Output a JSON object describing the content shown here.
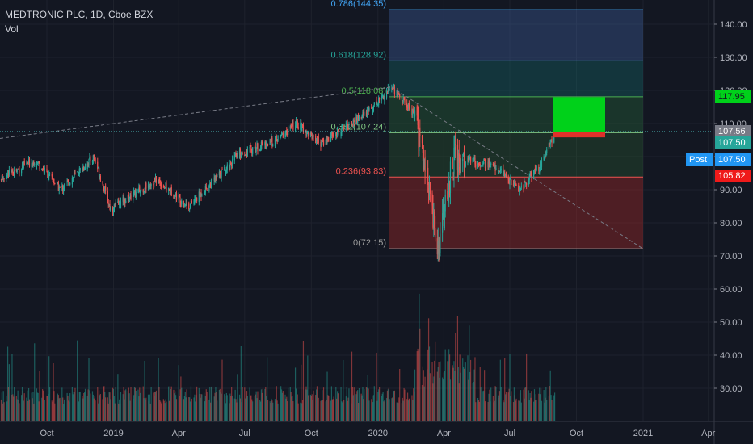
{
  "header": {
    "symbol_line": "MEDTRONIC PLC, 1D, Cboe BZX",
    "indicator": "Vol"
  },
  "colors": {
    "background": "#131722",
    "up": "#26a69a",
    "down": "#ef5350",
    "target_box": "#00d11a",
    "stop_box": "#e0302a"
  },
  "chart_data": {
    "type": "candlestick",
    "x_ticks": [
      "Oct",
      "2019",
      "Apr",
      "Jul",
      "Oct",
      "2020",
      "Apr",
      "Jul",
      "Oct",
      "2021",
      "Apr"
    ],
    "y_ticks": [
      30,
      40,
      50,
      60,
      70,
      80,
      90,
      100,
      110,
      120,
      130,
      140
    ],
    "y_tick_labels": [
      "30.00",
      "40.00",
      "50.00",
      "60.00",
      "70.00",
      "80.00",
      "90.00",
      "100.00",
      "110.00",
      "120.00",
      "130.00",
      "140.00"
    ],
    "ylim": [
      22,
      150
    ],
    "price_path": [
      {
        "date": "2018-07-01",
        "price": 90
      },
      {
        "date": "2018-09-15",
        "price": 99
      },
      {
        "date": "2018-10-20",
        "price": 90
      },
      {
        "date": "2018-12-05",
        "price": 100
      },
      {
        "date": "2018-12-28",
        "price": 84
      },
      {
        "date": "2019-03-01",
        "price": 93
      },
      {
        "date": "2019-04-15",
        "price": 85
      },
      {
        "date": "2019-06-25",
        "price": 101
      },
      {
        "date": "2019-08-15",
        "price": 105
      },
      {
        "date": "2019-09-10",
        "price": 110
      },
      {
        "date": "2019-10-15",
        "price": 104
      },
      {
        "date": "2019-12-15",
        "price": 113
      },
      {
        "date": "2020-01-20",
        "price": 121
      },
      {
        "date": "2020-02-20",
        "price": 113
      },
      {
        "date": "2020-03-10",
        "price": 93
      },
      {
        "date": "2020-03-23",
        "price": 72.15
      },
      {
        "date": "2020-04-15",
        "price": 100
      },
      {
        "date": "2020-06-10",
        "price": 97
      },
      {
        "date": "2020-07-15",
        "price": 90
      },
      {
        "date": "2020-08-15",
        "price": 98
      },
      {
        "date": "2020-09-01",
        "price": 107.5
      }
    ],
    "fib_levels": [
      {
        "label": "0.786(144.35)",
        "price": 144.35,
        "color": "#42a5f5"
      },
      {
        "label": "0.618(128.92)",
        "price": 128.92,
        "color": "#26a69a"
      },
      {
        "label": "0.5(118.08)",
        "price": 118.08,
        "color": "#4caf50"
      },
      {
        "label": "0.382(107.24)",
        "price": 107.24,
        "color": "#81c784"
      },
      {
        "label": "0.236(93.83)",
        "price": 93.83,
        "color": "#ef5350"
      },
      {
        "label": "0(72.15)",
        "price": 72.15,
        "color": "#9e9e9e"
      }
    ],
    "price_tags": [
      {
        "label": "117.95",
        "price": 117.95,
        "bg": "#00d11a",
        "fg": "#131722"
      },
      {
        "label": "107.56",
        "price": 107.56,
        "bg": "#787b86",
        "fg": "#ffffff"
      },
      {
        "label": "107.50",
        "price": 107.5,
        "bg": "#26a69a",
        "fg": "#ffffff"
      },
      {
        "label": "107.50",
        "price": 107.5,
        "bg": "#2196f3",
        "fg": "#ffffff"
      },
      {
        "label": "105.82",
        "price": 105.82,
        "bg": "#ef1a1a",
        "fg": "#ffffff"
      }
    ],
    "post_label": "Post",
    "position_tool": {
      "entry": 107.5,
      "target": 117.95,
      "stop": 105.82
    }
  }
}
